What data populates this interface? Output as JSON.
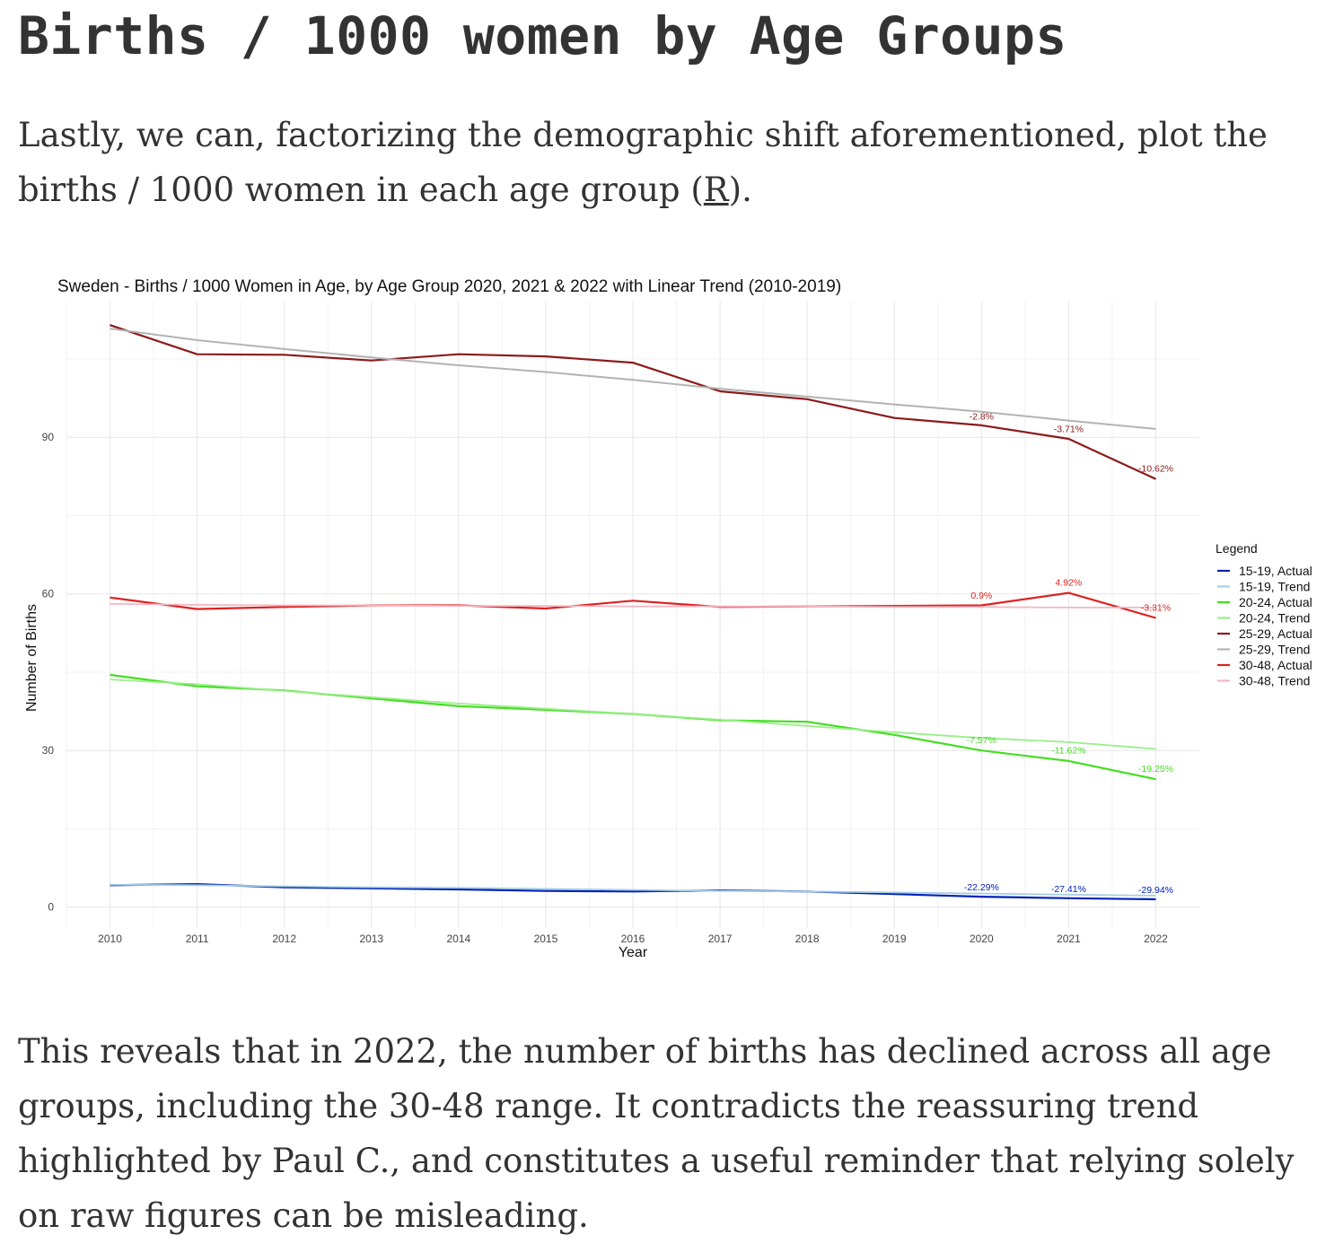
{
  "heading": "Births / 1000 women by Age Groups",
  "intro": {
    "text_before": "Lastly, we can, factorizing the demographic shift aforementioned, plot the births / 1000 women in each age group (",
    "link_text": "R",
    "text_after": ")."
  },
  "outro": "This reveals that in 2022, the number of births has declined across all age groups, including the 30-48 range. It contradicts the reassuring trend highlighted by Paul C., and constitutes a useful reminder that relying solely on raw figures can be misleading.",
  "chart_data": {
    "type": "line",
    "title": "Sweden - Births / 1000 Women in Age, by Age Group 2020, 2021 & 2022 with Linear Trend (2010-2019)",
    "xlabel": "Year",
    "ylabel": "Number of Births",
    "x": [
      2010,
      2011,
      2012,
      2013,
      2014,
      2015,
      2016,
      2017,
      2018,
      2019,
      2020,
      2021,
      2022
    ],
    "xlim": [
      2009.5,
      2022.5
    ],
    "ylim": [
      -4,
      116
    ],
    "yticks": [
      0,
      30,
      60,
      90
    ],
    "grid": true,
    "legend_title": "Legend",
    "legend_position": "right",
    "series": [
      {
        "name": "15-19, Actual",
        "color": "#0022bb",
        "width": 2.2,
        "values": [
          4.2,
          4.4,
          3.8,
          3.6,
          3.4,
          3.1,
          3.0,
          3.2,
          3.0,
          2.5,
          2.0,
          1.7,
          1.5
        ]
      },
      {
        "name": "15-19, Trend",
        "color": "#a6cee3",
        "width": 1.8,
        "values": [
          4.3,
          4.2,
          4.0,
          3.8,
          3.7,
          3.5,
          3.3,
          3.1,
          3.0,
          2.8,
          2.6,
          2.4,
          2.2
        ]
      },
      {
        "name": "20-24, Actual",
        "color": "#44dd22",
        "width": 2.2,
        "values": [
          44.5,
          42.3,
          41.5,
          40.0,
          38.5,
          37.8,
          37.0,
          35.8,
          35.5,
          33.0,
          30.0,
          28.0,
          24.5
        ]
      },
      {
        "name": "20-24, Trend",
        "color": "#99ee88",
        "width": 1.8,
        "values": [
          43.6,
          42.7,
          41.4,
          40.2,
          39.0,
          38.0,
          37.0,
          35.9,
          34.7,
          33.5,
          32.4,
          31.6,
          30.3
        ]
      },
      {
        "name": "25-29, Actual",
        "color": "#8b1a1a",
        "width": 2.2,
        "values": [
          111.5,
          105.9,
          105.8,
          104.7,
          105.9,
          105.5,
          104.3,
          98.8,
          97.3,
          93.7,
          92.3,
          89.7,
          82.0
        ]
      },
      {
        "name": "25-29, Trend",
        "color": "#b3b3b3",
        "width": 2.0,
        "values": [
          110.8,
          108.6,
          106.9,
          105.3,
          103.8,
          102.5,
          101.0,
          99.3,
          97.8,
          96.3,
          94.9,
          93.2,
          91.6
        ]
      },
      {
        "name": "30-48, Actual",
        "color": "#dd2222",
        "width": 2.2,
        "values": [
          59.3,
          57.1,
          57.5,
          57.8,
          57.8,
          57.2,
          58.7,
          57.5,
          57.6,
          57.7,
          57.8,
          60.2,
          55.4
        ]
      },
      {
        "name": "30-48, Trend",
        "color": "#f4b6c2",
        "width": 1.8,
        "values": [
          58.1,
          57.9,
          57.8,
          57.8,
          57.7,
          57.7,
          57.6,
          57.6,
          57.6,
          57.5,
          57.5,
          57.4,
          57.4
        ]
      }
    ],
    "annotations": [
      {
        "x": 2020,
        "y": 93.4,
        "text": "-2.8%",
        "color": "#8b1a1a"
      },
      {
        "x": 2021,
        "y": 91.0,
        "text": "-3.71%",
        "color": "#8b1a1a"
      },
      {
        "x": 2022,
        "y": 83.4,
        "text": "-10.62%",
        "color": "#8b1a1a"
      },
      {
        "x": 2020,
        "y": 59.1,
        "text": "0.9%",
        "color": "#dd2222"
      },
      {
        "x": 2021,
        "y": 61.6,
        "text": "4.92%",
        "color": "#dd2222"
      },
      {
        "x": 2022,
        "y": 56.8,
        "text": "-3.31%",
        "color": "#dd2222"
      },
      {
        "x": 2020,
        "y": 31.4,
        "text": "-7.57%",
        "color": "#44dd22"
      },
      {
        "x": 2021,
        "y": 29.4,
        "text": "-11.62%",
        "color": "#44dd22"
      },
      {
        "x": 2022,
        "y": 25.9,
        "text": "-19.25%",
        "color": "#44dd22"
      },
      {
        "x": 2020,
        "y": 3.2,
        "text": "-22.29%",
        "color": "#0022bb"
      },
      {
        "x": 2021,
        "y": 2.9,
        "text": "-27.41%",
        "color": "#0022bb"
      },
      {
        "x": 2022,
        "y": 2.7,
        "text": "-29.94%",
        "color": "#0022bb"
      }
    ]
  }
}
